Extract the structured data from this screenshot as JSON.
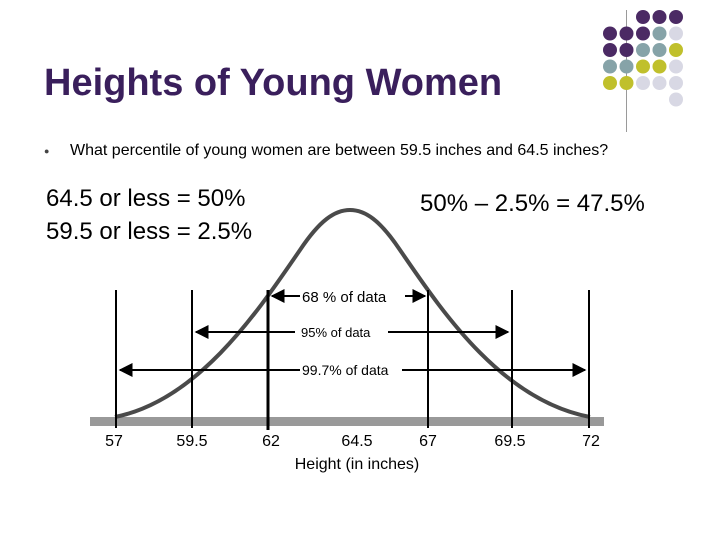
{
  "slide": {
    "title": "Heights of Young Women",
    "bullet": "What percentile of young women are between 59.5 inches and 64.5 inches?",
    "equation_left": [
      "64.5 or less = 50%",
      "59.5 or less = 2.5%"
    ],
    "equation_right": "50% – 2.5% = 47.5%"
  },
  "diagram": {
    "ticks": [
      "57",
      "59.5",
      "62",
      "64.5",
      "67",
      "69.5",
      "72"
    ],
    "axis_label": "Height (in inches)",
    "ranges": [
      {
        "label": "68 % of data"
      },
      {
        "label": "95% of data"
      },
      {
        "label": "99.7% of data"
      }
    ]
  },
  "decor": {
    "colors": {
      "purple": "#4b2a64",
      "teal": "#86a3a8",
      "yellow": "#c0c02c",
      "grey": "#d8d8e4"
    }
  }
}
